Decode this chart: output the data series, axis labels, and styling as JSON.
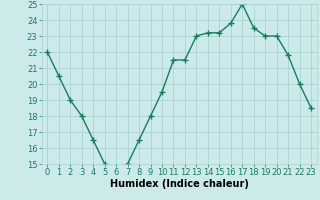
{
  "x": [
    0,
    1,
    2,
    3,
    4,
    5,
    6,
    7,
    8,
    9,
    10,
    11,
    12,
    13,
    14,
    15,
    16,
    17,
    18,
    19,
    20,
    21,
    22,
    23
  ],
  "y": [
    22.0,
    20.5,
    19.0,
    18.0,
    16.5,
    15.0,
    14.8,
    15.0,
    16.5,
    18.0,
    19.5,
    21.5,
    21.5,
    23.0,
    23.2,
    23.2,
    23.8,
    25.0,
    23.5,
    23.0,
    23.0,
    21.8,
    20.0,
    18.5
  ],
  "line_color": "#1a7a6a",
  "marker": "+",
  "markersize": 4,
  "linewidth": 1.0,
  "markeredgewidth": 1.0,
  "xlabel": "Humidex (Indice chaleur)",
  "xlabel_fontsize": 7,
  "tick_fontsize": 6,
  "xlim": [
    -0.5,
    23.5
  ],
  "ylim": [
    15,
    25
  ],
  "yticks": [
    15,
    16,
    17,
    18,
    19,
    20,
    21,
    22,
    23,
    24,
    25
  ],
  "xticks": [
    0,
    1,
    2,
    3,
    4,
    5,
    6,
    7,
    8,
    9,
    10,
    11,
    12,
    13,
    14,
    15,
    16,
    17,
    18,
    19,
    20,
    21,
    22,
    23
  ],
  "bg_color": "#cceae7",
  "grid_color": "#aad4d0"
}
